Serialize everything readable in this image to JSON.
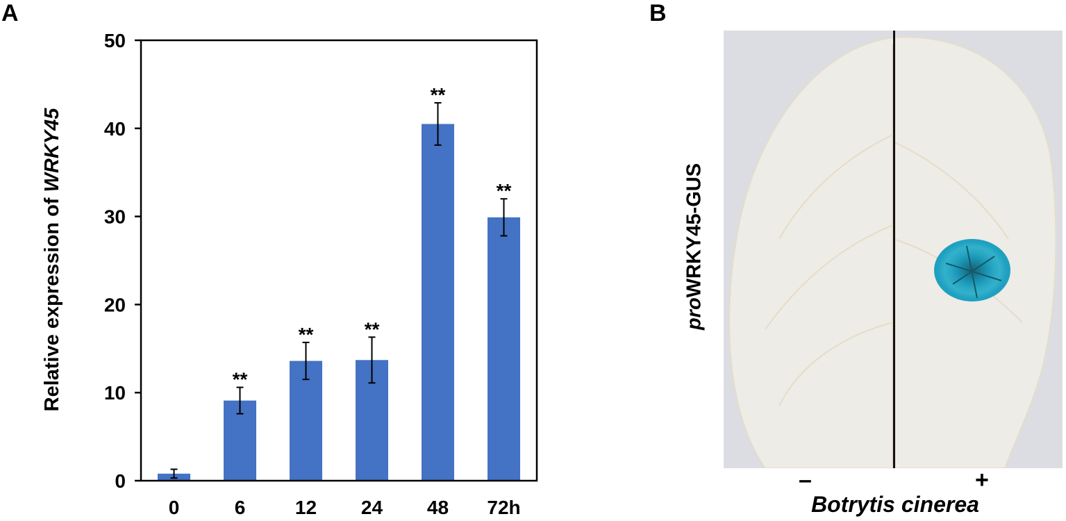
{
  "panel_a": {
    "letter": "A"
  },
  "panel_b": {
    "letter": "B",
    "ylabel_prefix": "pro",
    "ylabel_main": "WRKY45-GUS",
    "condition_minus": "–",
    "condition_plus": "+",
    "xlabel": "Botrytis cinerea",
    "stain_color": "#1fa0c0"
  },
  "chart_data": {
    "type": "bar",
    "categories": [
      "0",
      "6",
      "12",
      "24",
      "48",
      "72h"
    ],
    "values": [
      0.8,
      9.1,
      13.6,
      13.7,
      40.5,
      29.9
    ],
    "errors": [
      0.5,
      1.5,
      2.1,
      2.6,
      2.4,
      2.1
    ],
    "significance": [
      "",
      "**",
      "**",
      "**",
      "**",
      "**"
    ],
    "ylabel_prefix": "Relative expression of ",
    "ylabel_gene": "WRKY45",
    "ylim": [
      0,
      50
    ],
    "yticks": [
      0,
      10,
      20,
      30,
      40,
      50
    ],
    "bar_color": "#4472c4",
    "grid": false
  }
}
